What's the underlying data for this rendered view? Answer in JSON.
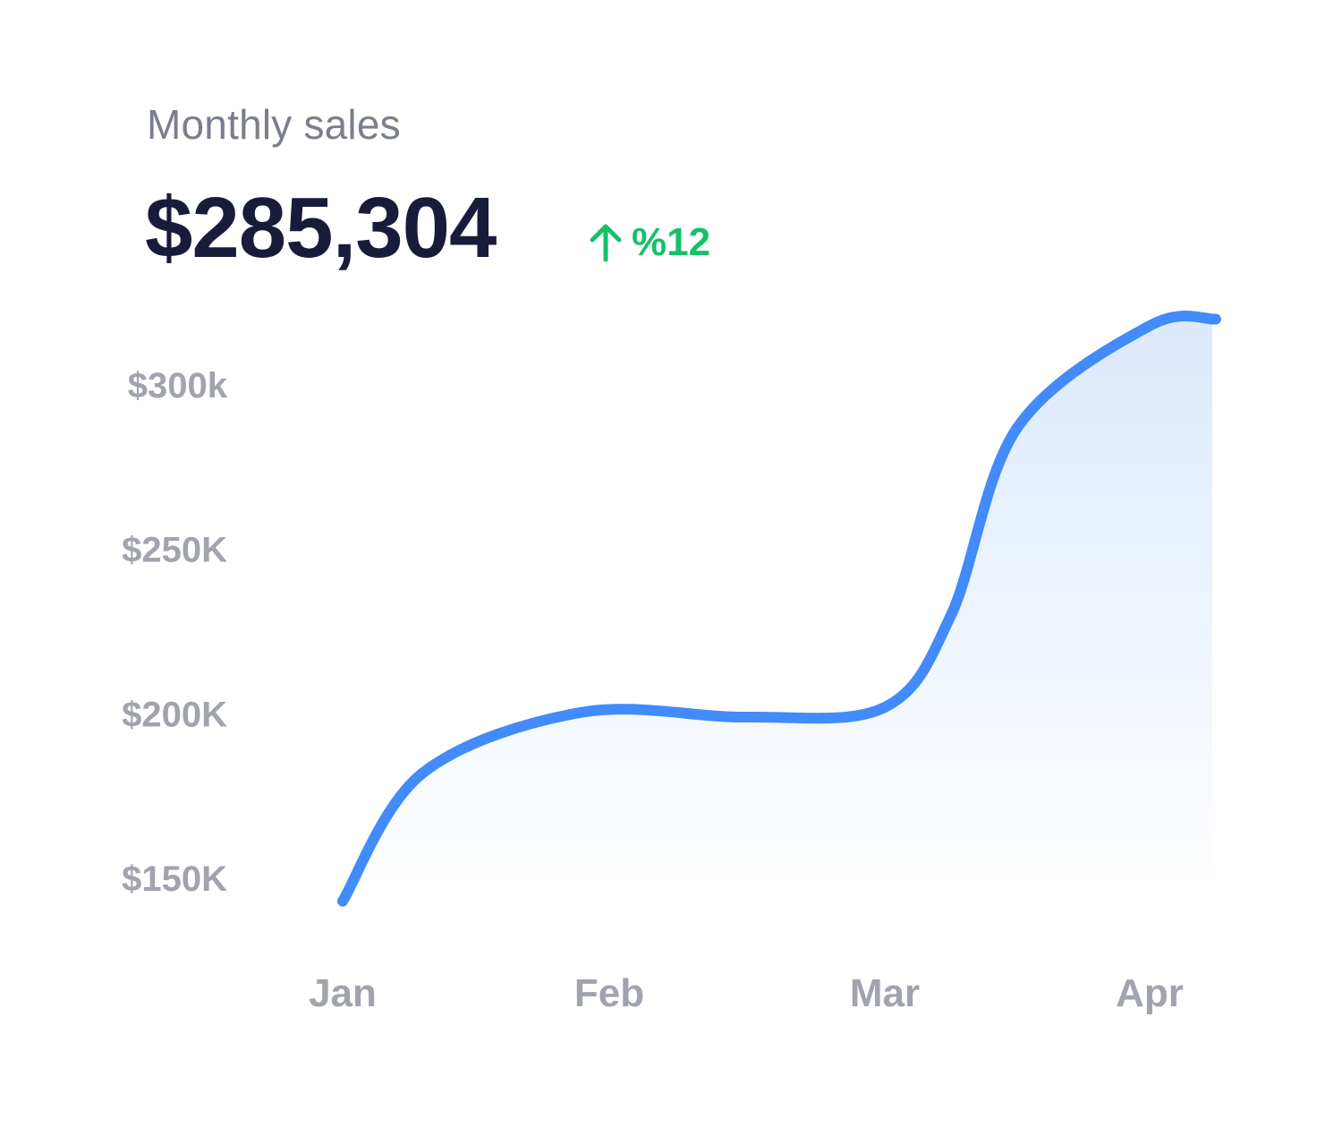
{
  "header": {
    "title": "Monthly sales",
    "total": "$285,304",
    "change_text": "%12",
    "change_icon": "arrow-up-icon",
    "change_color": "#14c06a"
  },
  "colors": {
    "line": "#428bfa",
    "area_top": "#dce9fc",
    "area_bottom": "#ffffff",
    "axis_text": "#a1a3ae",
    "value_text": "#191b3a",
    "title_text": "#7b7e8c"
  },
  "chart_data": {
    "type": "area",
    "title": "",
    "xlabel": "",
    "ylabel": "",
    "categories": [
      "Jan",
      "Feb",
      "Mar",
      "Apr"
    ],
    "y_ticks": [
      {
        "value": 300000,
        "label": "$300k"
      },
      {
        "value": 250000,
        "label": "$250K"
      },
      {
        "value": 200000,
        "label": "$200K"
      },
      {
        "value": 150000,
        "label": "$150K"
      }
    ],
    "ylim": [
      150000,
      300000
    ],
    "grid": false,
    "legend": "none",
    "series": [
      {
        "points": [
          {
            "x": 0.0,
            "y": 143000
          },
          {
            "x": 0.3,
            "y": 182000
          },
          {
            "x": 0.9,
            "y": 200500
          },
          {
            "x": 1.5,
            "y": 199000
          },
          {
            "x": 2.0,
            "y": 202000
          },
          {
            "x": 2.25,
            "y": 230000
          },
          {
            "x": 2.5,
            "y": 287000
          },
          {
            "x": 3.0,
            "y": 318000
          },
          {
            "x": 3.25,
            "y": 320000
          }
        ]
      }
    ]
  }
}
